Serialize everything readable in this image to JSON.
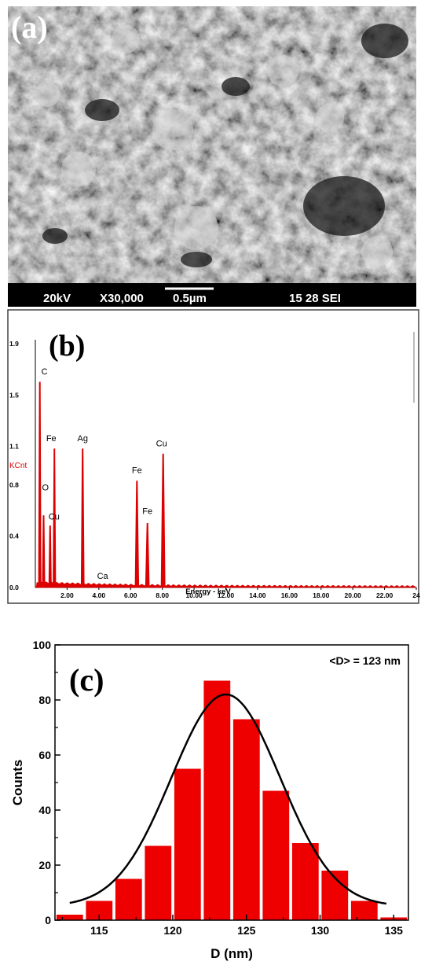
{
  "panels": {
    "a": {
      "label": "(a)",
      "info_bar": {
        "voltage": "20kV",
        "magnification": "X30,000",
        "scale": "0.5µm",
        "id": "15 28 SEI"
      }
    },
    "b": {
      "label": "(b)"
    },
    "c": {
      "label": "(c)",
      "annotation": "<D> = 123 nm"
    }
  },
  "chart_data": [
    {
      "type": "line",
      "panel": "b",
      "title": "",
      "xlabel": "Energy - keV",
      "ylabel": "KCnt",
      "xlim": [
        0,
        24
      ],
      "ylim": [
        0,
        1.9
      ],
      "x_ticks": [
        "2.00",
        "4.00",
        "6.00",
        "8.00",
        "10.00",
        "12.00",
        "14.00",
        "16.00",
        "18.00",
        "20.00",
        "22.00",
        "24"
      ],
      "y_ticks": [
        "0.0",
        "0.4",
        "0.8",
        "1.1",
        "1.5",
        "1.9"
      ],
      "peaks": [
        {
          "element": "C",
          "label": "C",
          "energy": 0.28,
          "height": 1.6
        },
        {
          "element": "O",
          "label": "O",
          "energy": 0.52,
          "height": 0.56
        },
        {
          "element": "Cu",
          "label": "Cu",
          "energy": 0.93,
          "height": 0.48
        },
        {
          "element": "Fe",
          "label": "Fe",
          "energy": 1.2,
          "height": 1.08
        },
        {
          "element": "Ag",
          "label": "Ag",
          "energy": 2.98,
          "height": 1.08
        },
        {
          "element": "Ca",
          "label": "Ca",
          "energy": 3.69,
          "height": 0.03
        },
        {
          "element": "Fe",
          "label": "Fe",
          "energy": 6.4,
          "height": 0.83
        },
        {
          "element": "Fe",
          "label": "Fe",
          "energy": 7.06,
          "height": 0.5
        },
        {
          "element": "Cu",
          "label": "Cu",
          "energy": 8.05,
          "height": 1.04
        }
      ],
      "series_color": "#dd0000"
    },
    {
      "type": "bar",
      "panel": "c",
      "title": "",
      "xlabel": "D (nm)",
      "ylabel": "Counts",
      "xlim": [
        112,
        136
      ],
      "ylim": [
        0,
        100
      ],
      "x_ticks": [
        115,
        120,
        125,
        130,
        135
      ],
      "y_ticks": [
        0,
        20,
        40,
        60,
        80,
        100
      ],
      "bin_width": 2,
      "bins": [
        {
          "center": 113,
          "count": 2
        },
        {
          "center": 115,
          "count": 7
        },
        {
          "center": 117,
          "count": 15
        },
        {
          "center": 119,
          "count": 27
        },
        {
          "center": 121,
          "count": 55
        },
        {
          "center": 123,
          "count": 87
        },
        {
          "center": 125,
          "count": 73
        },
        {
          "center": 127,
          "count": 47
        },
        {
          "center": 129,
          "count": 28
        },
        {
          "center": 131,
          "count": 18
        },
        {
          "center": 133,
          "count": 7
        },
        {
          "center": 135,
          "count": 1
        }
      ],
      "fit": {
        "type": "gaussian",
        "mean": 123.6,
        "sigma": 3.7,
        "amplitude": 77,
        "offset": 5,
        "x_range": [
          113,
          134.5
        ]
      },
      "bar_color": "#ee0000",
      "fit_color": "#000000"
    }
  ]
}
